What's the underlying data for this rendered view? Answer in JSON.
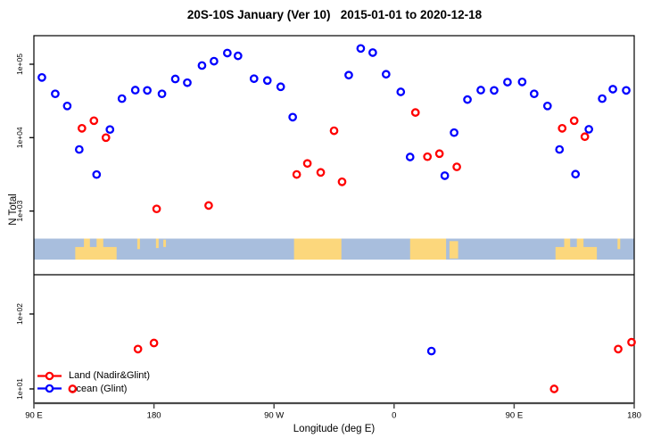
{
  "chart_data": {
    "type": "scatter",
    "title": "20S-10S January (Ver 10)   2015-01-01 to 2020-12-18",
    "xlabel": "Longitude (deg E)",
    "ylabel": "N Total",
    "x_axis": {
      "span_deg": 450,
      "start_label_meaning": "90 E eastward wrapping through 180, 90 W, 0, 90 E, 180",
      "ticks": [
        {
          "deg": 0,
          "label": "90 E"
        },
        {
          "deg": 90,
          "label": "180"
        },
        {
          "deg": 180,
          "label": "90 W"
        },
        {
          "deg": 270,
          "label": "0"
        },
        {
          "deg": 360,
          "label": "90 E"
        },
        {
          "deg": 450,
          "label": "180"
        }
      ]
    },
    "y_axis": {
      "scale": "log",
      "broken": true,
      "upper_ticks": [
        {
          "value": 100000,
          "label": "1e+05"
        },
        {
          "value": 10000,
          "label": "1e+04"
        },
        {
          "value": 1000,
          "label": "1e+03"
        }
      ],
      "lower_ticks": [
        {
          "value": 100,
          "label": "1e+02"
        },
        {
          "value": 10,
          "label": "1e+01"
        }
      ]
    },
    "legend": {
      "entries": [
        {
          "label": "Land (Nadir&Glint)",
          "color": "#ff0000"
        },
        {
          "label": "Ocean (Glint)",
          "color": "#0000ff"
        }
      ]
    },
    "series": [
      {
        "name": "Land (Nadir&Glint)",
        "color": "#ff0000",
        "points": [
          [
            36,
            13400,
            "u"
          ],
          [
            45,
            17000,
            "u"
          ],
          [
            54,
            10000,
            "u"
          ],
          [
            92,
            1070,
            "u"
          ],
          [
            131,
            1190,
            "u"
          ],
          [
            197,
            3150,
            "u"
          ],
          [
            205,
            4450,
            "u"
          ],
          [
            215,
            3360,
            "u"
          ],
          [
            225,
            12400,
            "u"
          ],
          [
            231,
            2500,
            "u"
          ],
          [
            286,
            22000,
            "u"
          ],
          [
            295,
            5500,
            "u"
          ],
          [
            304,
            6050,
            "u"
          ],
          [
            317,
            4000,
            "u"
          ],
          [
            396,
            13400,
            "u"
          ],
          [
            405,
            17000,
            "u"
          ],
          [
            413,
            10300,
            "u"
          ],
          [
            29,
            10,
            "l"
          ],
          [
            78,
            34,
            "l"
          ],
          [
            90,
            41,
            "l"
          ],
          [
            390,
            10,
            "l"
          ],
          [
            438,
            34,
            "l"
          ],
          [
            448,
            42,
            "l"
          ]
        ]
      },
      {
        "name": "Ocean (Glint)",
        "color": "#0000ff",
        "points": [
          [
            6,
            66000,
            "u"
          ],
          [
            16,
            39500,
            "u"
          ],
          [
            25,
            27000,
            "u"
          ],
          [
            34,
            6900,
            "u"
          ],
          [
            47,
            3140,
            "u"
          ],
          [
            57,
            12900,
            "u"
          ],
          [
            66,
            34000,
            "u"
          ],
          [
            76,
            44400,
            "u"
          ],
          [
            85,
            44000,
            "u"
          ],
          [
            96,
            39500,
            "u"
          ],
          [
            106,
            63000,
            "u"
          ],
          [
            115,
            56000,
            "u"
          ],
          [
            126,
            96000,
            "u"
          ],
          [
            135,
            110000,
            "u"
          ],
          [
            145,
            142000,
            "u"
          ],
          [
            153,
            130000,
            "u"
          ],
          [
            165,
            63500,
            "u"
          ],
          [
            175,
            60000,
            "u"
          ],
          [
            185,
            49300,
            "u"
          ],
          [
            194,
            19000,
            "u"
          ],
          [
            236,
            71000,
            "u"
          ],
          [
            245,
            164000,
            "u"
          ],
          [
            254,
            144000,
            "u"
          ],
          [
            264,
            73000,
            "u"
          ],
          [
            275,
            42000,
            "u"
          ],
          [
            282,
            5450,
            "u"
          ],
          [
            308,
            3030,
            "u"
          ],
          [
            315,
            11700,
            "u"
          ],
          [
            325,
            33000,
            "u"
          ],
          [
            335,
            44400,
            "u"
          ],
          [
            345,
            44000,
            "u"
          ],
          [
            355,
            57000,
            "u"
          ],
          [
            366,
            57400,
            "u"
          ],
          [
            375,
            39500,
            "u"
          ],
          [
            385,
            27000,
            "u"
          ],
          [
            394,
            6900,
            "u"
          ],
          [
            406,
            3180,
            "u"
          ],
          [
            416,
            13000,
            "u"
          ],
          [
            426,
            34000,
            "u"
          ],
          [
            434,
            45700,
            "u"
          ],
          [
            444,
            44000,
            "u"
          ],
          [
            298,
            32,
            "l"
          ]
        ]
      }
    ],
    "map_strip": {
      "description": "World coastline band for 20S-10S latitude",
      "ocean_color": "#a8bedd",
      "land_color": "#fcd77c",
      "land_patches": [
        {
          "from": 31,
          "to": 62,
          "top": 0.4,
          "bottom": 1
        },
        {
          "from": 37.5,
          "to": 42,
          "top": 0,
          "bottom": 1
        },
        {
          "from": 47,
          "to": 52,
          "top": 0,
          "bottom": 1
        },
        {
          "from": 77.5,
          "to": 79.5,
          "top": 0,
          "bottom": 0.5
        },
        {
          "from": 91.5,
          "to": 93.5,
          "top": 0,
          "bottom": 0.45
        },
        {
          "from": 97,
          "to": 99,
          "top": 0.05,
          "bottom": 0.4
        },
        {
          "from": 195,
          "to": 230.5,
          "top": 0,
          "bottom": 1
        },
        {
          "from": 282,
          "to": 309,
          "top": 0,
          "bottom": 1
        },
        {
          "from": 311.5,
          "to": 318,
          "top": 0.12,
          "bottom": 0.95
        },
        {
          "from": 391,
          "to": 422,
          "top": 0.4,
          "bottom": 1
        },
        {
          "from": 397.5,
          "to": 402,
          "top": 0,
          "bottom": 1
        },
        {
          "from": 407,
          "to": 412,
          "top": 0,
          "bottom": 1
        },
        {
          "from": 437.5,
          "to": 439.5,
          "top": 0,
          "bottom": 0.5
        }
      ]
    }
  }
}
